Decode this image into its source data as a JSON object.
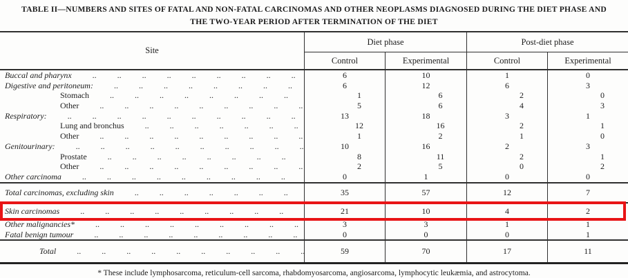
{
  "title": {
    "line1": "TABLE II—NUMBERS AND SITES OF FATAL AND NON-FATAL CARCINOMAS AND OTHER NEOPLASMS DIAGNOSED DURING THE DIET PHASE AND",
    "line2": "THE TWO-YEAR PERIOD AFTER TERMINATION OF THE DIET"
  },
  "table": {
    "site_header": "Site",
    "group_headers": [
      {
        "label": "Diet phase"
      },
      {
        "label": "Post-diet phase"
      }
    ],
    "sub_headers": [
      "Control",
      "Experimental",
      "Control",
      "Experimental"
    ],
    "body_rows": [
      {
        "label": "Buccal and pharynx",
        "level": "main",
        "values": [
          "6",
          "10",
          "1",
          "0"
        ]
      },
      {
        "label": "Digestive and peritoneum:",
        "level": "main",
        "values": [
          "6",
          "12",
          "6",
          "3"
        ]
      },
      {
        "label": "Stomach",
        "level": "sub",
        "values": [
          "1",
          "6",
          "2",
          "0"
        ]
      },
      {
        "label": "Other",
        "level": "sub",
        "values": [
          "5",
          "6",
          "4",
          "3"
        ]
      },
      {
        "label": "Respiratory:",
        "level": "main",
        "values": [
          "13",
          "18",
          "3",
          "1"
        ]
      },
      {
        "label": "Lung and bronchus",
        "level": "sub",
        "values": [
          "12",
          "16",
          "2",
          "1"
        ]
      },
      {
        "label": "Other",
        "level": "sub",
        "values": [
          "1",
          "2",
          "1",
          "0"
        ]
      },
      {
        "label": "Genitourinary:",
        "level": "main",
        "values": [
          "10",
          "16",
          "2",
          "3"
        ]
      },
      {
        "label": "Prostate",
        "level": "sub",
        "values": [
          "8",
          "11",
          "2",
          "1"
        ]
      },
      {
        "label": "Other",
        "level": "sub",
        "values": [
          "2",
          "5",
          "0",
          "2"
        ]
      },
      {
        "label": "Other carcinoma",
        "level": "main",
        "values": [
          "0",
          "1",
          "0",
          "0"
        ]
      }
    ],
    "total_carcinomas_row": {
      "label": "Total carcinomas, excluding skin",
      "values": [
        "35",
        "57",
        "12",
        "7"
      ]
    },
    "skin_row": {
      "label": "Skin carcinomas",
      "values": [
        "21",
        "10",
        "4",
        "2"
      ],
      "highlighted": true
    },
    "minor_rows": [
      {
        "label": "Other malignancies*",
        "values": [
          "3",
          "3",
          "1",
          "1"
        ]
      },
      {
        "label": "Fatal benign tumour",
        "values": [
          "0",
          "0",
          "0",
          "1"
        ]
      }
    ],
    "grand_total_row": {
      "label": "Total",
      "values": [
        "59",
        "70",
        "17",
        "11"
      ]
    }
  },
  "footnote": "* These include lymphosarcoma, reticulum-cell sarcoma, rhabdomyosarcoma, angiosarcoma, lymphocytic leukæmia, and astrocytoma.",
  "colors": {
    "highlight_box": "#e81416",
    "text": "#1c1c1c",
    "rule": "#2e2e2e"
  }
}
